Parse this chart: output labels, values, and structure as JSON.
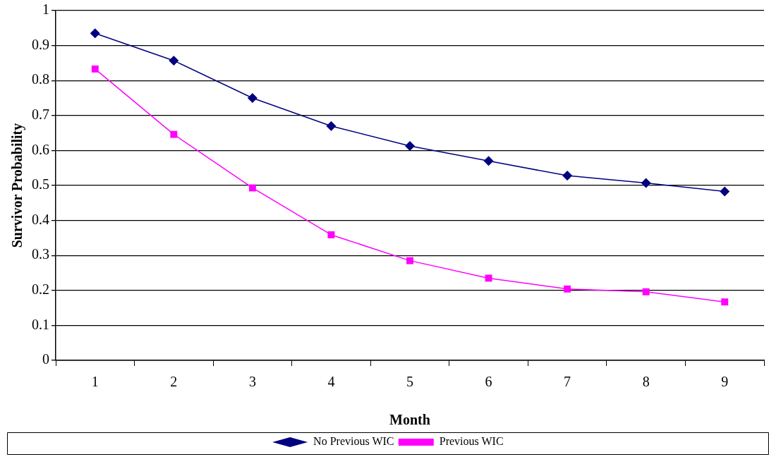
{
  "chart_data": {
    "type": "line",
    "xlabel": "Month",
    "ylabel": "Survivor Probability",
    "categories": [
      "1",
      "2",
      "3",
      "4",
      "5",
      "6",
      "7",
      "8",
      "9"
    ],
    "series": [
      {
        "name": "No Previous WIC",
        "color": "#000080",
        "marker": "diamond",
        "values": [
          0.935,
          0.857,
          0.75,
          0.67,
          0.613,
          0.57,
          0.528,
          0.507,
          0.483
        ]
      },
      {
        "name": "Previous WIC",
        "color": "#ff00ff",
        "marker": "square",
        "values": [
          0.833,
          0.646,
          0.493,
          0.359,
          0.285,
          0.235,
          0.204,
          0.196,
          0.167
        ]
      }
    ],
    "ylim": [
      0,
      1
    ],
    "yticks": [
      0,
      0.1,
      0.2,
      0.3,
      0.4,
      0.5,
      0.6,
      0.7,
      0.8,
      0.9,
      1
    ],
    "grid": "y",
    "legend": "bottom",
    "line_style": "solid"
  }
}
